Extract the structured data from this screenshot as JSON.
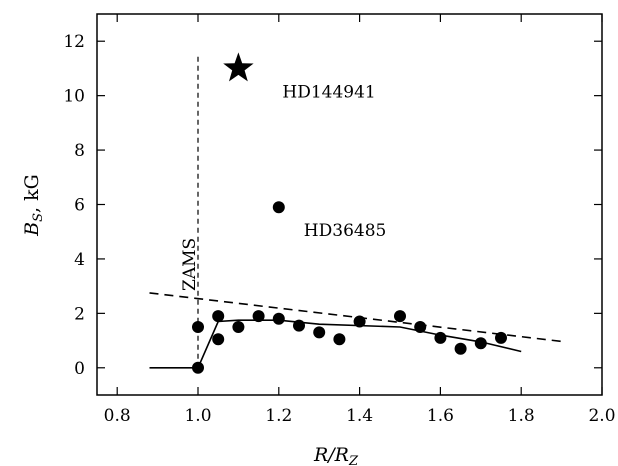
{
  "chart_data": {
    "type": "scatter",
    "xlabel_main": "R/R",
    "xlabel_sub": "Z",
    "ylabel_main": "B",
    "ylabel_sub": "S",
    "ylabel_rest": ", kG",
    "xlim": [
      0.75,
      2.0
    ],
    "ylim": [
      -1.0,
      13.0
    ],
    "xticks": [
      0.8,
      1.0,
      1.2,
      1.4,
      1.6,
      1.8,
      2.0
    ],
    "xtick_labels": [
      "0.8",
      "1.0",
      "1.2",
      "1.4",
      "1.6",
      "1.8",
      "2.0"
    ],
    "yticks": [
      0,
      2,
      4,
      6,
      8,
      10,
      12
    ],
    "ytick_labels": [
      "0",
      "2",
      "4",
      "6",
      "8",
      "10",
      "12"
    ],
    "grid": false,
    "points": [
      {
        "x": 1.0,
        "y": 0.0
      },
      {
        "x": 1.0,
        "y": 1.5
      },
      {
        "x": 1.05,
        "y": 1.05
      },
      {
        "x": 1.05,
        "y": 1.9
      },
      {
        "x": 1.1,
        "y": 1.5
      },
      {
        "x": 1.15,
        "y": 1.9
      },
      {
        "x": 1.2,
        "y": 1.8
      },
      {
        "x": 1.25,
        "y": 1.55
      },
      {
        "x": 1.3,
        "y": 1.3
      },
      {
        "x": 1.35,
        "y": 1.05
      },
      {
        "x": 1.4,
        "y": 1.7
      },
      {
        "x": 1.5,
        "y": 1.9
      },
      {
        "x": 1.55,
        "y": 1.5
      },
      {
        "x": 1.6,
        "y": 1.1
      },
      {
        "x": 1.65,
        "y": 0.7
      },
      {
        "x": 1.7,
        "y": 0.9
      },
      {
        "x": 1.75,
        "y": 1.1
      }
    ],
    "special_points": [
      {
        "x": 1.2,
        "y": 5.9,
        "marker": "circle",
        "label": "HD36485"
      },
      {
        "x": 1.1,
        "y": 11.0,
        "marker": "star",
        "label": "HD144941"
      }
    ],
    "solid_line": {
      "x": [
        0.88,
        1.0,
        1.05,
        1.1,
        1.2,
        1.3,
        1.5,
        1.6,
        1.7,
        1.8
      ],
      "y": [
        0.0,
        0.0,
        1.7,
        1.75,
        1.75,
        1.6,
        1.5,
        1.2,
        0.95,
        0.6
      ]
    },
    "dashed_line": {
      "x": [
        0.88,
        1.91
      ],
      "y": [
        2.75,
        0.95
      ]
    },
    "zams": {
      "x": 1.0,
      "y_range": [
        0.0,
        11.5
      ],
      "label": "ZAMS"
    }
  }
}
